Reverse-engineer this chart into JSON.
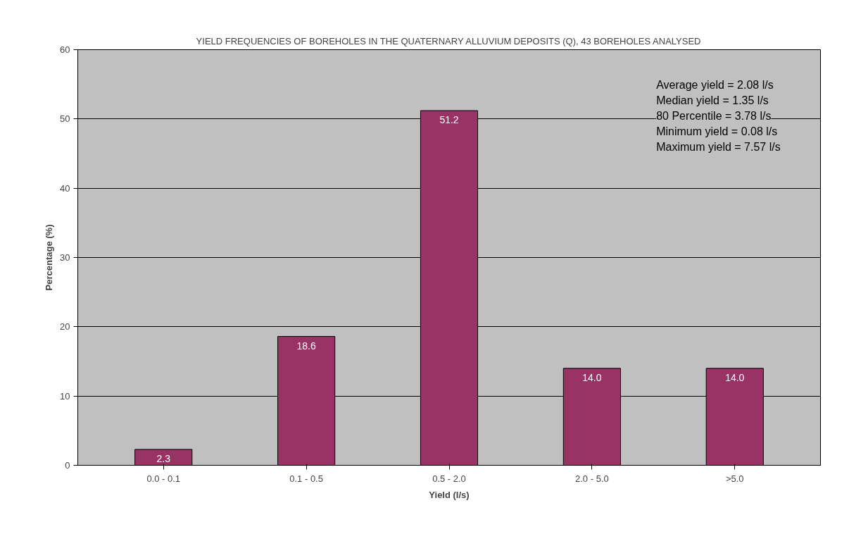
{
  "chart_data": {
    "type": "bar",
    "title": "YIELD FREQUENCIES OF BOREHOLES IN THE QUATERNARY ALLUVIUM DEPOSITS (Q), 43 BOREHOLES ANALYSED",
    "xlabel": "Yield (l/s)",
    "ylabel": "Percentage (%)",
    "categories": [
      "0.0 - 0.1",
      "0.1 - 0.5",
      "0.5 - 2.0",
      "2.0 - 5.0",
      ">5.0"
    ],
    "values": [
      2.3,
      18.6,
      51.2,
      14.0,
      14.0
    ],
    "color": "#993366",
    "value_labels": [
      "2.3",
      "18.6",
      "51.2",
      "14.0",
      "14.0"
    ],
    "ylim": [
      0,
      60
    ],
    "yticks": [
      0,
      10,
      20,
      30,
      40,
      50,
      60
    ],
    "grid": "y",
    "annotations": [
      "Average yield = 2.08 l/s",
      "Median yield = 1.35 l/s",
      "80 Percentile = 3.78 l/s",
      "Minimum yield = 0.08 l/s",
      "Maximum yield = 7.57 l/s"
    ]
  }
}
